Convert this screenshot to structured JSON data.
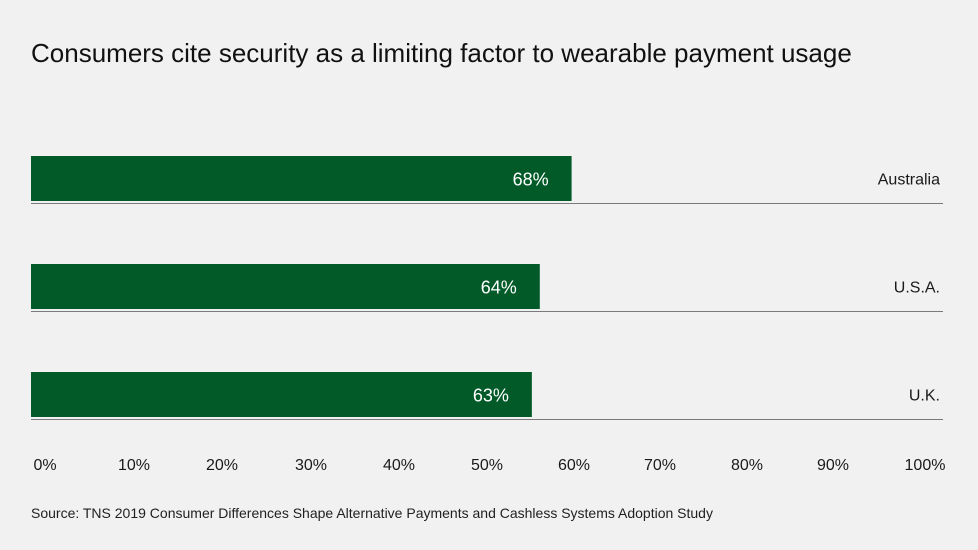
{
  "title": "Consumers cite security as a limiting factor to wearable payment usage",
  "source": "Source: TNS 2019 Consumer Differences Shape Alternative Payments and Cashless Systems Adoption Study",
  "colors": {
    "bar": "#025a29",
    "bar_label": "#ffffff",
    "baseline": "#7a7a7a",
    "background": "#f0f1f0"
  },
  "chart_data": {
    "type": "bar",
    "orientation": "horizontal",
    "title": "Consumers cite security as a limiting factor to wearable payment usage",
    "categories": [
      "Australia",
      "U.S.A.",
      "U.K."
    ],
    "values": [
      68,
      64,
      63
    ],
    "value_labels": [
      "68%",
      "64%",
      "63%"
    ],
    "xlim": [
      0,
      100
    ],
    "xticks": [
      "0%",
      "10%",
      "20%",
      "30%",
      "40%",
      "50%",
      "60%",
      "70%",
      "80%",
      "90%",
      "100%"
    ],
    "grid": false,
    "legend": "none"
  }
}
